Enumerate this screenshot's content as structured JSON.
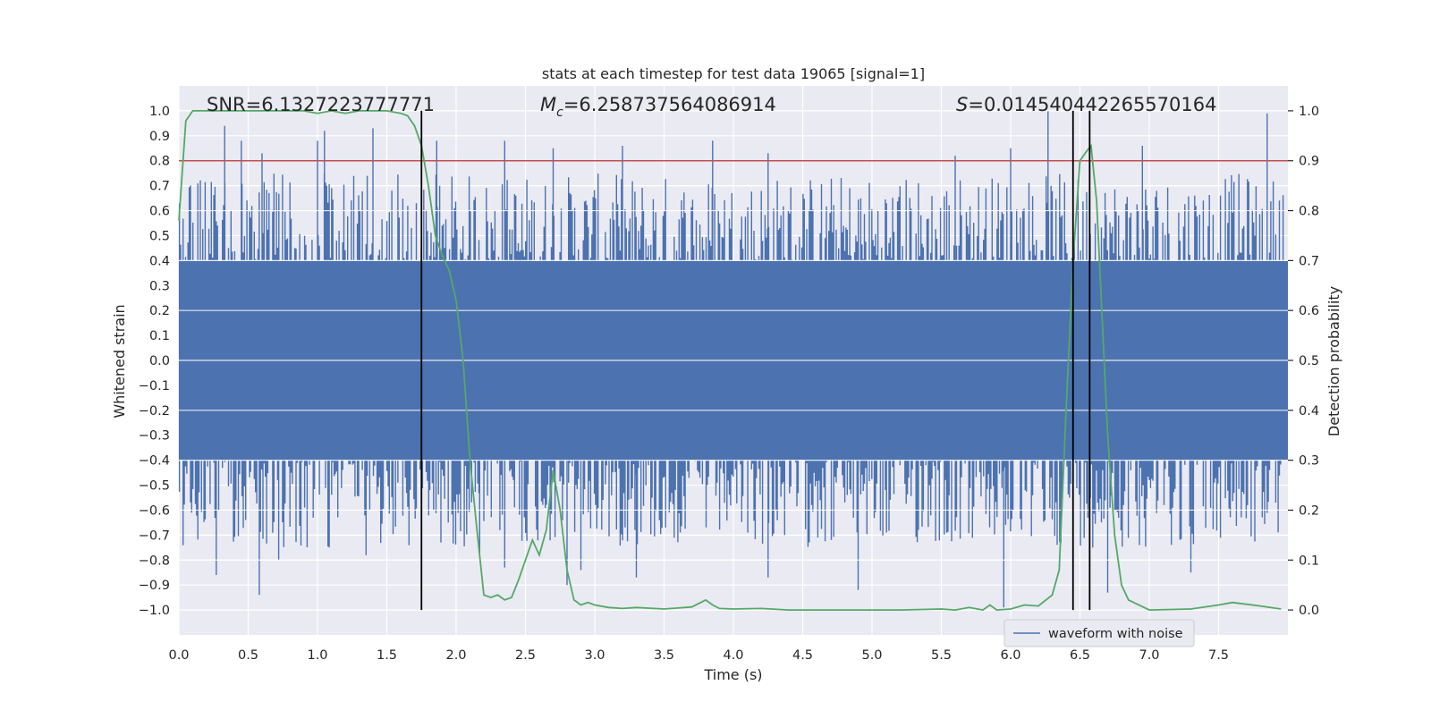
{
  "chart_data": {
    "type": "line",
    "title": "stats at each timestep for test data 19065 [signal=1]",
    "xlabel": "Time (s)",
    "ylabel": "Whitened strain",
    "y2label": "Detection probability",
    "xlim": [
      0.0,
      8.0
    ],
    "ylim": [
      -1.1,
      1.1
    ],
    "y2lim": [
      -0.05,
      1.05
    ],
    "xticks": [
      "0.0",
      "0.5",
      "1.0",
      "1.5",
      "2.0",
      "2.5",
      "3.0",
      "3.5",
      "4.0",
      "4.5",
      "5.0",
      "5.5",
      "6.0",
      "6.5",
      "7.0",
      "7.5"
    ],
    "yticks": [
      "1.0",
      "0.9",
      "0.8",
      "0.7",
      "0.6",
      "0.5",
      "0.4",
      "0.3",
      "0.2",
      "0.1",
      "0.0",
      "-0.1",
      "-0.2",
      "-0.3",
      "-0.4",
      "-0.5",
      "-0.6",
      "-0.7",
      "-0.8",
      "-0.9",
      "-1.0"
    ],
    "y2ticks": [
      "0.0",
      "0.1",
      "0.2",
      "0.3",
      "0.4",
      "0.5",
      "0.6",
      "0.7",
      "0.8",
      "0.9",
      "1.0"
    ],
    "grid": true,
    "legend_position": "lower-right",
    "annotations": {
      "snr": "SNR=6.1327223777771",
      "mc_symbol": "M",
      "mc_sub": "c",
      "mc_value": "=6.258737564086914",
      "s_symbol": "S",
      "s_value": "=0.014540442265570164"
    },
    "threshold_line": {
      "y2": 0.9,
      "color": "#c44e52"
    },
    "vertical_lines": [
      1.75,
      6.45,
      6.57
    ],
    "series": [
      {
        "name": "waveform with noise",
        "axis": "left",
        "color": "#4c72b0",
        "description_of_envelope": {
          "upper_dense": 0.4,
          "lower_dense": -0.4,
          "peak_times_upper": [
            0.33,
            0.45,
            0.6,
            1.0,
            1.05,
            1.4,
            1.75,
            1.86,
            2.35,
            2.7,
            3.2,
            3.85,
            4.25,
            5.6,
            6.0,
            6.27,
            6.95,
            7.85
          ],
          "peak_values_upper": [
            0.94,
            0.88,
            0.83,
            0.88,
            0.92,
            0.93,
            0.98,
            0.88,
            0.88,
            0.85,
            0.86,
            0.88,
            0.83,
            0.82,
            0.85,
            1.0,
            0.86,
            0.99
          ],
          "peak_times_lower": [
            0.27,
            0.58,
            0.72,
            1.35,
            2.17,
            2.35,
            2.8,
            2.9,
            3.3,
            4.25,
            4.9,
            5.95,
            6.7,
            7.3
          ],
          "peak_values_lower": [
            -0.86,
            -0.94,
            -0.8,
            -0.78,
            -0.78,
            -0.83,
            -0.9,
            -0.84,
            -0.87,
            -0.87,
            -0.92,
            -0.99,
            -0.93,
            -0.85
          ]
        }
      },
      {
        "name": "",
        "axis": "right",
        "color": "#55a868",
        "x": [
          0.0,
          0.05,
          0.1,
          0.2,
          0.3,
          0.4,
          0.5,
          0.6,
          0.7,
          0.8,
          0.9,
          1.0,
          1.1,
          1.2,
          1.3,
          1.4,
          1.5,
          1.6,
          1.65,
          1.7,
          1.75,
          1.8,
          1.85,
          1.9,
          1.95,
          2.0,
          2.05,
          2.1,
          2.15,
          2.2,
          2.25,
          2.3,
          2.35,
          2.4,
          2.45,
          2.5,
          2.55,
          2.6,
          2.65,
          2.7,
          2.75,
          2.8,
          2.85,
          2.9,
          2.95,
          3.0,
          3.1,
          3.2,
          3.3,
          3.5,
          3.7,
          3.8,
          3.85,
          3.9,
          4.0,
          4.2,
          4.4,
          4.8,
          5.2,
          5.5,
          5.6,
          5.7,
          5.8,
          5.85,
          5.9,
          6.0,
          6.1,
          6.2,
          6.3,
          6.35,
          6.4,
          6.45,
          6.5,
          6.55,
          6.58,
          6.62,
          6.7,
          6.75,
          6.8,
          6.85,
          7.0,
          7.3,
          7.5,
          7.6,
          7.8,
          7.95
        ],
        "y": [
          0.78,
          0.98,
          1.0,
          1.0,
          1.0,
          1.0,
          1.0,
          1.0,
          1.0,
          1.0,
          1.0,
          0.995,
          1.0,
          0.995,
          1.0,
          1.0,
          1.0,
          0.995,
          0.99,
          0.97,
          0.93,
          0.85,
          0.75,
          0.71,
          0.68,
          0.62,
          0.5,
          0.3,
          0.16,
          0.03,
          0.025,
          0.03,
          0.02,
          0.025,
          0.06,
          0.1,
          0.14,
          0.11,
          0.16,
          0.28,
          0.2,
          0.08,
          0.02,
          0.01,
          0.015,
          0.01,
          0.005,
          0.003,
          0.005,
          0.002,
          0.006,
          0.02,
          0.01,
          0.003,
          0.002,
          0.003,
          0.0,
          0.0,
          0.0,
          0.002,
          0.0,
          0.005,
          0.0,
          0.01,
          0.0,
          0.002,
          0.01,
          0.008,
          0.03,
          0.08,
          0.4,
          0.7,
          0.9,
          0.92,
          0.93,
          0.82,
          0.35,
          0.15,
          0.05,
          0.02,
          0.0,
          0.002,
          0.01,
          0.015,
          0.008,
          0.002
        ]
      }
    ]
  }
}
